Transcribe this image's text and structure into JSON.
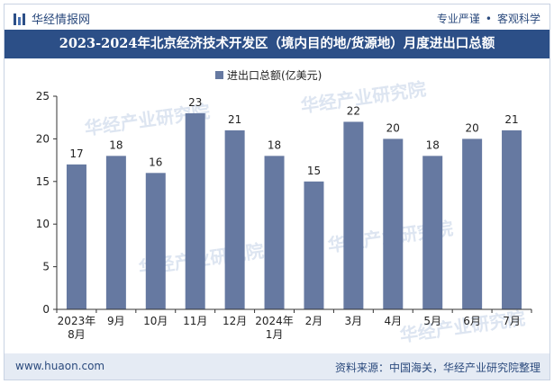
{
  "header": {
    "brand": "华经情报网",
    "brand_icon": "bar-logo-icon",
    "tagline_left": "专业严谨",
    "tagline_sep": "•",
    "tagline_right": "客观科学"
  },
  "footer": {
    "url": "www.huaon.com",
    "source": "资料来源：中国海关，华经产业研究院整理"
  },
  "watermark": "华经产业研究院",
  "colors": {
    "bar": "#6679a1",
    "title_bg": "#2c4f87",
    "footer_bg": "#e5ebf4",
    "text": "#222222"
  },
  "chart_data": {
    "type": "bar",
    "title": "2023-2024年北京经济技术开发区（境内目的地/货源地）月度进出口总额",
    "legend": [
      "进出口总额(亿美元)"
    ],
    "legend_position": "top-center",
    "categories": [
      [
        "2023年",
        "8月"
      ],
      [
        "9月"
      ],
      [
        "10月"
      ],
      [
        "11月"
      ],
      [
        "12月"
      ],
      [
        "2024年",
        "1月"
      ],
      [
        "2月"
      ],
      [
        "3月"
      ],
      [
        "4月"
      ],
      [
        "5月"
      ],
      [
        "6月"
      ],
      [
        "7月"
      ]
    ],
    "values": [
      17,
      18,
      16,
      23,
      21,
      18,
      15,
      22,
      20,
      18,
      20,
      21
    ],
    "ylim": [
      0,
      25
    ],
    "yticks": [
      "0",
      "5",
      "10",
      "15",
      "20",
      "25"
    ],
    "xlabel": "",
    "ylabel": "",
    "grid": false
  }
}
